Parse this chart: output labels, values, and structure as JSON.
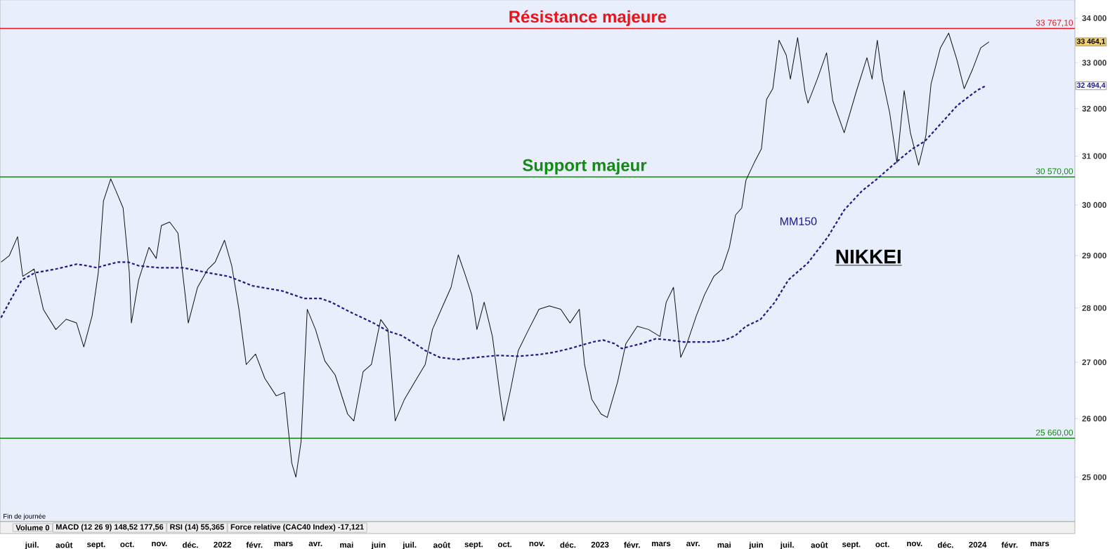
{
  "chart_data": {
    "type": "line",
    "title": "NIKKEI",
    "xlim": [
      "2021-05-31",
      "2024-04-04"
    ],
    "xticks": [
      {
        "value": "2021-07-01",
        "label": "juil."
      },
      {
        "value": "2021-08-01",
        "label": "août"
      },
      {
        "value": "2021-09-01",
        "label": "sept."
      },
      {
        "value": "2021-10-01",
        "label": "oct."
      },
      {
        "value": "2021-11-01",
        "label": "nov."
      },
      {
        "value": "2021-12-01",
        "label": "déc."
      },
      {
        "value": "2022-01-01",
        "label": "2022"
      },
      {
        "value": "2022-02-01",
        "label": "févr."
      },
      {
        "value": "2022-03-01",
        "label": "mars"
      },
      {
        "value": "2022-04-01",
        "label": "avr."
      },
      {
        "value": "2022-05-01",
        "label": "mai"
      },
      {
        "value": "2022-06-01",
        "label": "juin"
      },
      {
        "value": "2022-07-01",
        "label": "juil."
      },
      {
        "value": "2022-08-01",
        "label": "août"
      },
      {
        "value": "2022-09-01",
        "label": "sept."
      },
      {
        "value": "2022-10-01",
        "label": "oct."
      },
      {
        "value": "2022-11-01",
        "label": "nov."
      },
      {
        "value": "2022-12-01",
        "label": "déc."
      },
      {
        "value": "2023-01-01",
        "label": "2023"
      },
      {
        "value": "2023-02-01",
        "label": "févr."
      },
      {
        "value": "2023-03-01",
        "label": "mars"
      },
      {
        "value": "2023-04-01",
        "label": "avr."
      },
      {
        "value": "2023-05-01",
        "label": "mai"
      },
      {
        "value": "2023-06-01",
        "label": "juin"
      },
      {
        "value": "2023-07-01",
        "label": "juil."
      },
      {
        "value": "2023-08-01",
        "label": "août"
      },
      {
        "value": "2023-09-01",
        "label": "sept."
      },
      {
        "value": "2023-10-01",
        "label": "oct."
      },
      {
        "value": "2023-11-01",
        "label": "nov."
      },
      {
        "value": "2023-12-01",
        "label": "déc."
      },
      {
        "value": "2024-01-01",
        "label": "2024"
      },
      {
        "value": "2024-02-01",
        "label": "févr."
      },
      {
        "value": "2024-03-01",
        "label": "mars"
      }
    ],
    "ylim": [
      24270,
      34420
    ],
    "yticks": [
      {
        "value": 25000,
        "label": "25 000"
      },
      {
        "value": 26000,
        "label": "26 000"
      },
      {
        "value": 27000,
        "label": "27 000"
      },
      {
        "value": 28000,
        "label": "28 000"
      },
      {
        "value": 29000,
        "label": "29 000"
      },
      {
        "value": 30000,
        "label": "30 000"
      },
      {
        "value": 31000,
        "label": "31 000"
      },
      {
        "value": 32000,
        "label": "32 000"
      },
      {
        "value": 33000,
        "label": "33 000"
      },
      {
        "value": 34000,
        "label": "34 000"
      }
    ],
    "log": true,
    "ref_lines": [
      {
        "axis": "y",
        "value": 33767.1,
        "label": "33 767,10",
        "color": "#e8141c"
      },
      {
        "axis": "y",
        "value": 30570,
        "label": "30 570,00",
        "color": "#138a13"
      },
      {
        "axis": "y",
        "value": 25660,
        "label": "25 660,00",
        "color": "#138a13"
      }
    ],
    "annotations": [
      "Fin de journée",
      "Volume 0",
      "MACD (12 26 9) 148,52 177,56",
      "RSI (14) 55,365",
      "Force relative (CAC40 Index) -17,121",
      {
        "text": "Résistance majeure",
        "x": "2022-12-20",
        "y": 33767.1
      },
      {
        "text": "Support majeur",
        "x": "2022-12-17",
        "y": 30570
      },
      "33 464,1",
      "32 494,4"
    ],
    "series": [
      {
        "color": "#111111",
        "line_style": "solid",
        "x": [
          "2021-06-01",
          "2021-06-09",
          "2021-06-17",
          "2021-06-22",
          "2021-07-03",
          "2021-07-12",
          "2021-07-24",
          "2021-08-03",
          "2021-08-13",
          "2021-08-20",
          "2021-08-28",
          "2021-09-03",
          "2021-09-08",
          "2021-09-15",
          "2021-09-20",
          "2021-09-27",
          "2021-10-03",
          "2021-10-05",
          "2021-10-12",
          "2021-10-22",
          "2021-10-29",
          "2021-11-03",
          "2021-11-11",
          "2021-11-19",
          "2021-11-26",
          "2021-11-29",
          "2021-12-08",
          "2021-12-18",
          "2021-12-25",
          "2022-01-03",
          "2022-01-10",
          "2022-01-17",
          "2022-01-24",
          "2022-02-02",
          "2022-02-11",
          "2022-02-22",
          "2022-03-02",
          "2022-03-09",
          "2022-03-13",
          "2022-03-18",
          "2022-03-24",
          "2022-04-01",
          "2022-04-10",
          "2022-04-20",
          "2022-05-02",
          "2022-05-08",
          "2022-05-17",
          "2022-05-25",
          "2022-06-03",
          "2022-06-10",
          "2022-06-17",
          "2022-06-26",
          "2022-07-06",
          "2022-07-16",
          "2022-07-23",
          "2022-08-02",
          "2022-08-10",
          "2022-08-17",
          "2022-08-23",
          "2022-08-30",
          "2022-09-04",
          "2022-09-11",
          "2022-09-19",
          "2022-09-26",
          "2022-09-30",
          "2022-10-06",
          "2022-10-14",
          "2022-10-24",
          "2022-11-03",
          "2022-11-13",
          "2022-11-24",
          "2022-12-03",
          "2022-12-12",
          "2022-12-17",
          "2022-12-24",
          "2023-01-02",
          "2023-01-08",
          "2023-01-18",
          "2023-01-26",
          "2023-02-06",
          "2023-02-17",
          "2023-02-28",
          "2023-03-06",
          "2023-03-13",
          "2023-03-20",
          "2023-03-26",
          "2023-04-04",
          "2023-04-12",
          "2023-04-21",
          "2023-04-29",
          "2023-05-06",
          "2023-05-12",
          "2023-05-18",
          "2023-05-22",
          "2023-05-30",
          "2023-06-06",
          "2023-06-11",
          "2023-06-17",
          "2023-06-23",
          "2023-06-30",
          "2023-07-04",
          "2023-07-11",
          "2023-07-18",
          "2023-07-21",
          "2023-07-30",
          "2023-08-08",
          "2023-08-14",
          "2023-08-25",
          "2023-09-06",
          "2023-09-16",
          "2023-09-21",
          "2023-09-26",
          "2023-10-01",
          "2023-10-08",
          "2023-10-15",
          "2023-10-22",
          "2023-10-28",
          "2023-11-05",
          "2023-11-12",
          "2023-11-17",
          "2023-11-26",
          "2023-12-04",
          "2023-12-12",
          "2023-12-19",
          "2023-12-27",
          "2024-01-04",
          "2024-01-12"
        ],
        "values": [
          28875,
          29000,
          29370,
          28600,
          28740,
          27970,
          27600,
          27790,
          27720,
          27280,
          27850,
          28670,
          30080,
          30530,
          30290,
          29940,
          28670,
          27720,
          28530,
          29160,
          28945,
          29590,
          29660,
          29440,
          28250,
          27720,
          28390,
          28740,
          28875,
          29300,
          28805,
          27975,
          26960,
          27150,
          26710,
          26400,
          26460,
          25240,
          25000,
          25600,
          27975,
          27600,
          27025,
          26770,
          26080,
          25960,
          26830,
          26960,
          27785,
          27600,
          25960,
          26340,
          26650,
          26960,
          27600,
          28040,
          28390,
          29015,
          28670,
          28250,
          27600,
          28110,
          27470,
          26460,
          25960,
          26460,
          27215,
          27600,
          27975,
          28040,
          27975,
          27720,
          27975,
          26960,
          26340,
          26080,
          26020,
          26650,
          27340,
          27660,
          27600,
          27470,
          28110,
          28390,
          27090,
          27340,
          27850,
          28250,
          28600,
          28740,
          29160,
          29800,
          29940,
          30500,
          30860,
          31150,
          32200,
          32430,
          33500,
          33170,
          32640,
          33560,
          32390,
          32120,
          32640,
          33220,
          32170,
          31490,
          32390,
          33110,
          32640,
          33500,
          32640,
          31910,
          30860,
          32390,
          31490,
          30810,
          31430,
          32540,
          33330,
          33660,
          33060,
          32430,
          32850,
          33330,
          33464
        ]
      },
      {
        "name": "MM150",
        "color": "#1a1a8c",
        "line_style": "dashed",
        "x": [
          "2021-06-01",
          "2021-06-11",
          "2021-06-21",
          "2021-07-04",
          "2021-07-24",
          "2021-08-13",
          "2021-08-23",
          "2021-09-02",
          "2021-09-08",
          "2021-09-22",
          "2021-10-02",
          "2021-10-12",
          "2021-11-01",
          "2021-11-24",
          "2021-12-18",
          "2022-01-07",
          "2022-01-30",
          "2022-02-28",
          "2022-03-21",
          "2022-04-06",
          "2022-04-16",
          "2022-05-06",
          "2022-05-27",
          "2022-06-10",
          "2022-06-23",
          "2022-07-06",
          "2022-07-16",
          "2022-07-30",
          "2022-08-16",
          "2022-09-04",
          "2022-09-24",
          "2022-10-14",
          "2022-11-03",
          "2022-11-17",
          "2022-12-01",
          "2022-12-15",
          "2022-12-25",
          "2023-01-04",
          "2023-01-15",
          "2023-01-22",
          "2023-02-10",
          "2023-02-24",
          "2023-03-09",
          "2023-03-23",
          "2023-04-05",
          "2023-04-19",
          "2023-05-02",
          "2023-05-12",
          "2023-05-22",
          "2023-06-05",
          "2023-06-19",
          "2023-07-02",
          "2023-07-21",
          "2023-08-09",
          "2023-08-25",
          "2023-09-11",
          "2023-09-25",
          "2023-10-18",
          "2023-10-30",
          "2023-11-11",
          "2023-11-26",
          "2023-12-12",
          "2023-12-24",
          "2024-01-01",
          "2024-01-09"
        ],
        "values": [
          27820,
          28180,
          28530,
          28670,
          28740,
          28835,
          28805,
          28765,
          28805,
          28875,
          28875,
          28805,
          28765,
          28765,
          28670,
          28600,
          28420,
          28320,
          28180,
          28180,
          28110,
          27910,
          27720,
          27570,
          27490,
          27340,
          27215,
          27090,
          27050,
          27090,
          27125,
          27110,
          27140,
          27180,
          27240,
          27315,
          27370,
          27405,
          27340,
          27250,
          27340,
          27430,
          27405,
          27370,
          27370,
          27370,
          27405,
          27490,
          27660,
          27785,
          28110,
          28530,
          28860,
          29360,
          29900,
          30280,
          30515,
          30940,
          31150,
          31310,
          31670,
          32060,
          32270,
          32400,
          32494
        ]
      }
    ]
  }
}
